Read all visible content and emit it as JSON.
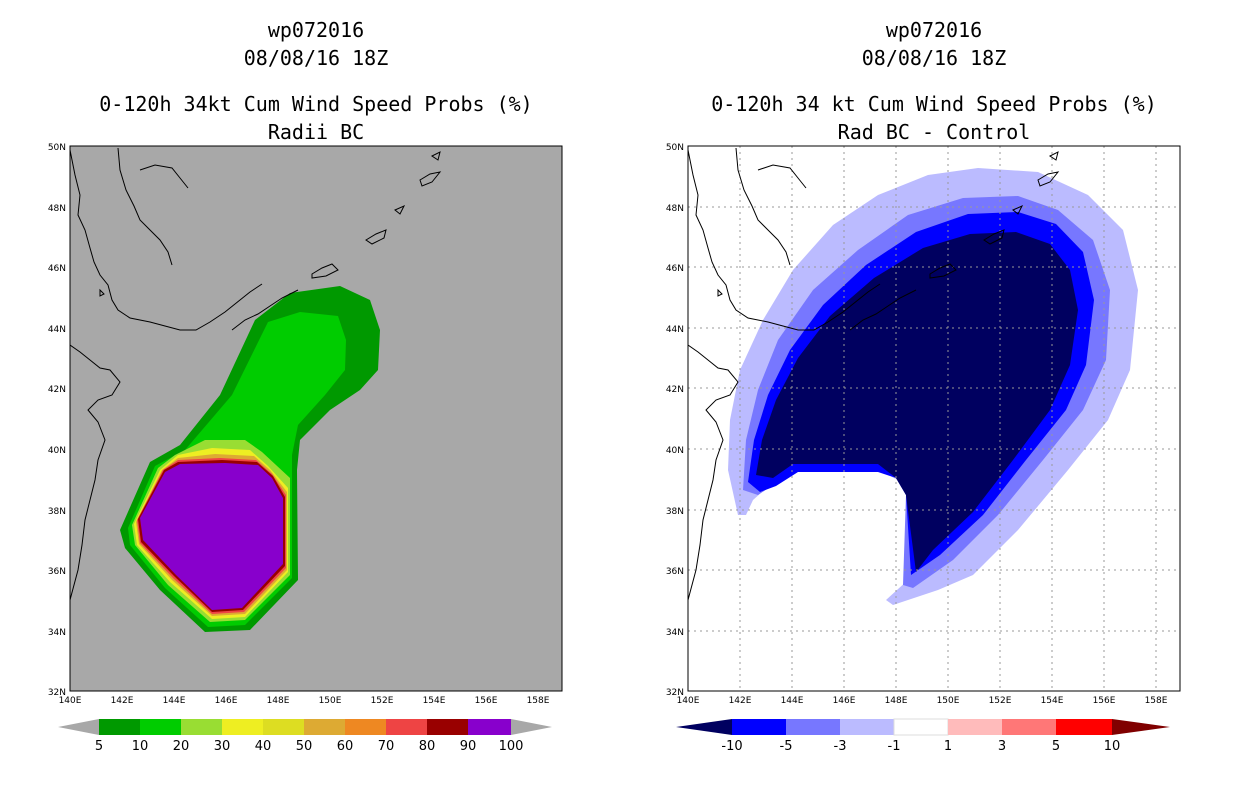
{
  "left": {
    "storm_id": "wp072016",
    "datetime": "08/08/16 18Z",
    "title": "0-120h 34kt Cum Wind Speed Probs (%)",
    "subtitle": "Radii BC",
    "background_color": "#a8a8a8",
    "colorbar": {
      "labels": [
        "5",
        "10",
        "20",
        "30",
        "40",
        "50",
        "60",
        "70",
        "80",
        "90",
        "100"
      ],
      "colors": [
        "#009900",
        "#00cc00",
        "#99dd33",
        "#eeee22",
        "#dddd22",
        "#ddaa33",
        "#ee8822",
        "#ee4444",
        "#990000",
        "#8800cc"
      ]
    }
  },
  "right": {
    "storm_id": "wp072016",
    "datetime": "08/08/16 18Z",
    "title": "0-120h 34 kt Cum Wind Speed Probs (%)",
    "subtitle": "Rad BC - Control",
    "background_color": "#ffffff",
    "colorbar": {
      "labels": [
        "-10",
        "-5",
        "-3",
        "-1",
        "1",
        "3",
        "5",
        "10"
      ],
      "colors": [
        "#000060",
        "#0000ff",
        "#7777ff",
        "#bbbbff",
        "#ffffff",
        "#ffbbbb",
        "#ff7777",
        "#ff0000",
        "#800000"
      ]
    }
  },
  "axes": {
    "lat_labels": [
      "50N",
      "48N",
      "46N",
      "44N",
      "42N",
      "40N",
      "38N",
      "36N",
      "34N",
      "32N"
    ],
    "lon_labels": [
      "140E",
      "142E",
      "144E",
      "146E",
      "148E",
      "150E",
      "152E",
      "154E",
      "156E",
      "158E"
    ]
  }
}
